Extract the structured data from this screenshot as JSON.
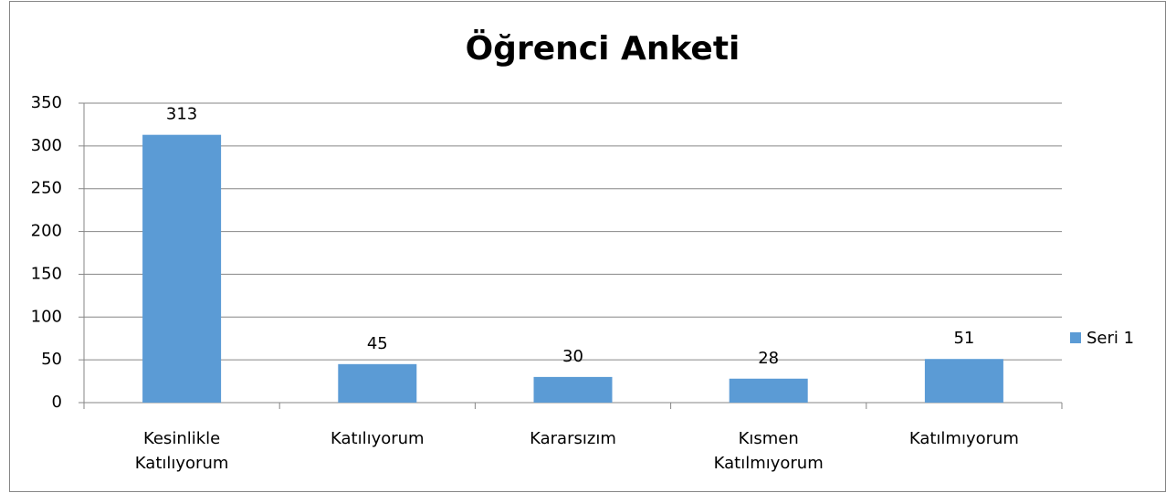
{
  "chart_data": {
    "type": "bar",
    "title": "Öğrenci Anketi",
    "categories": [
      "Kesinlikle Katılıyorum",
      "Katılıyorum",
      "Kararsızım",
      "Kısmen Katılmıyorum",
      "Katılmıyorum"
    ],
    "series": [
      {
        "name": "Seri 1",
        "color": "#5b9bd5",
        "values": [
          313,
          45,
          30,
          28,
          51
        ]
      }
    ],
    "ylim": [
      0,
      350
    ],
    "yticks": [
      0,
      50,
      100,
      150,
      200,
      250,
      300,
      350
    ],
    "grid": true,
    "legend": "right"
  }
}
